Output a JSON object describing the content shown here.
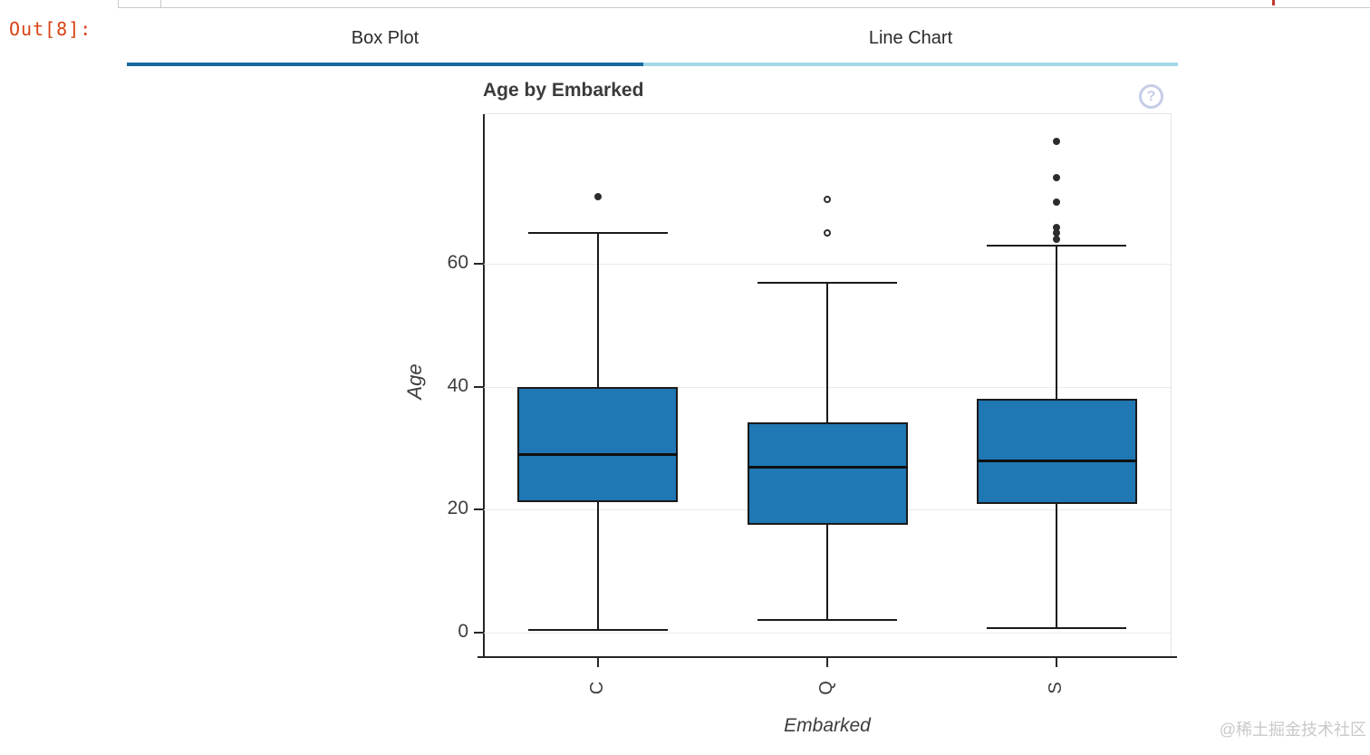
{
  "output_prompt": "Out[8]:",
  "tabs": {
    "items": [
      {
        "label": "Box Plot",
        "active": true
      },
      {
        "label": "Line Chart",
        "active": false
      }
    ],
    "active_color": "#17699e",
    "inactive_color": "#a2d8e9"
  },
  "help_icon_glyph": "?",
  "watermark": "@稀土掘金技术社区",
  "chart_data": {
    "type": "box",
    "title": "Age by Embarked",
    "xlabel": "Embarked",
    "ylabel": "Age",
    "categories": [
      "C",
      "Q",
      "S"
    ],
    "yticks": [
      0,
      20,
      40,
      60
    ],
    "ylim": [
      -4,
      84
    ],
    "grid": true,
    "legend": "none",
    "box_fill": "#1f77b4",
    "line_color": "#1a1a1a",
    "boxes": [
      {
        "category": "C",
        "whisker_low": 0.42,
        "q1": 21.25,
        "median": 29.0,
        "q3": 40.0,
        "whisker_high": 65.0,
        "outliers": [
          71.0
        ],
        "marker": "filled"
      },
      {
        "category": "Q",
        "whisker_low": 2.0,
        "q1": 17.5,
        "median": 27.0,
        "q3": 34.25,
        "whisker_high": 57.0,
        "outliers": [
          65.0,
          70.5
        ],
        "marker": "open"
      },
      {
        "category": "S",
        "whisker_low": 0.67,
        "q1": 21.0,
        "median": 28.0,
        "q3": 38.0,
        "whisker_high": 63.0,
        "outliers": [
          64.0,
          65.0,
          66.0,
          70.0,
          74.0,
          80.0
        ],
        "marker": "filled"
      }
    ]
  }
}
